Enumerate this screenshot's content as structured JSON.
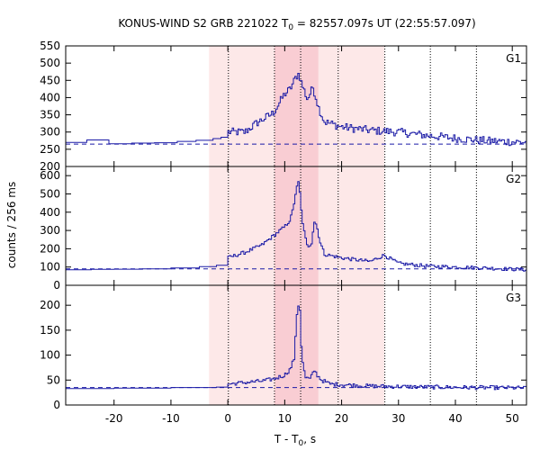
{
  "chart_data": {
    "type": "line",
    "title_pre": "KONUS-WIND S2 GRB 221022 T",
    "title_sub": "0",
    "title_post": " = 82557.097s UT (22:55:57.097)",
    "ylabel": "counts / 256 ms",
    "xlabel_pre": "T - T",
    "xlabel_sub": "0",
    "xlabel_post": ", s",
    "xlim": [
      -28.5,
      52.5
    ],
    "x_ticks": [
      -20,
      -10,
      0,
      10,
      20,
      30,
      40,
      50
    ],
    "x_tick_labels": [
      "-20",
      "-10",
      "0",
      "10",
      "20",
      "30",
      "40",
      "50"
    ],
    "grid": false,
    "colors": {
      "series": "#1a1aa6",
      "shade_light": "#fde8e8",
      "shade_dark": "#f9cdd3",
      "marker": "#000000"
    },
    "shaded_intervals": [
      {
        "from": -3.3,
        "to": 27.5,
        "tone": "light"
      },
      {
        "from": 8.2,
        "to": 15.9,
        "tone": "dark"
      }
    ],
    "marker_lines": [
      0.1,
      8.2,
      12.8,
      19.4,
      27.6,
      35.6,
      43.7
    ],
    "panels": [
      {
        "name": "G1",
        "ylim": [
          200,
          550
        ],
        "y_ticks": [
          200,
          250,
          300,
          350,
          400,
          450,
          500,
          550
        ],
        "y_tick_labels": [
          "200",
          "250",
          "300",
          "350",
          "400",
          "450",
          "500",
          "550"
        ],
        "background": 265,
        "pre_trigger": [
          [
            -28.5,
            270
          ],
          [
            -24.8,
            277
          ],
          [
            -20.9,
            266
          ],
          [
            -16.9,
            268
          ],
          [
            -12.9,
            269
          ],
          [
            -8.9,
            273
          ],
          [
            -5.6,
            276
          ],
          [
            -2.6,
            281
          ],
          [
            -1.2,
            285
          ],
          [
            0,
            285
          ]
        ],
        "profile": [
          [
            0,
            300
          ],
          [
            3,
            300
          ],
          [
            5,
            325
          ],
          [
            8,
            355
          ],
          [
            10,
            410
          ],
          [
            11,
            425
          ],
          [
            12,
            460
          ],
          [
            12.5,
            470
          ],
          [
            13,
            440
          ],
          [
            14,
            395
          ],
          [
            15,
            430
          ],
          [
            16,
            370
          ],
          [
            17,
            330
          ],
          [
            20,
            315
          ],
          [
            25,
            305
          ],
          [
            30,
            300
          ],
          [
            35,
            290
          ],
          [
            40,
            282
          ],
          [
            45,
            275
          ],
          [
            52.5,
            270
          ]
        ],
        "noise": 12
      },
      {
        "name": "G2",
        "ylim": [
          0,
          650
        ],
        "y_ticks": [
          0,
          100,
          200,
          300,
          400,
          500,
          600
        ],
        "y_tick_labels": [
          "0",
          "100",
          "200",
          "300",
          "400",
          "500",
          "600"
        ],
        "background": 90,
        "pre_trigger": [
          [
            -28.5,
            85
          ],
          [
            -24,
            87
          ],
          [
            -20,
            88
          ],
          [
            -15,
            90
          ],
          [
            -10,
            95
          ],
          [
            -5,
            102
          ],
          [
            -2,
            110
          ],
          [
            0,
            115
          ]
        ],
        "profile": [
          [
            0,
            150
          ],
          [
            3,
            180
          ],
          [
            6,
            220
          ],
          [
            8,
            270
          ],
          [
            10,
            320
          ],
          [
            11,
            360
          ],
          [
            11.5,
            420
          ],
          [
            12,
            520
          ],
          [
            12.5,
            570
          ],
          [
            13,
            380
          ],
          [
            13.5,
            280
          ],
          [
            14,
            210
          ],
          [
            14.7,
            230
          ],
          [
            15.2,
            350
          ],
          [
            15.6,
            330
          ],
          [
            16.2,
            240
          ],
          [
            17,
            170
          ],
          [
            20,
            150
          ],
          [
            25,
            130
          ],
          [
            27.5,
            165
          ],
          [
            30,
            120
          ],
          [
            35,
            105
          ],
          [
            40,
            100
          ],
          [
            45,
            95
          ],
          [
            52.5,
            85
          ]
        ],
        "noise": 10
      },
      {
        "name": "G3",
        "ylim": [
          0,
          240
        ],
        "y_ticks": [
          0,
          50,
          100,
          150,
          200
        ],
        "y_tick_labels": [
          "0",
          "50",
          "100",
          "150",
          "200"
        ],
        "background": 35,
        "pre_trigger": [
          [
            -28.5,
            33
          ],
          [
            -20,
            34
          ],
          [
            -10,
            35
          ],
          [
            -2,
            36
          ],
          [
            0,
            38
          ]
        ],
        "profile": [
          [
            0,
            42
          ],
          [
            3,
            45
          ],
          [
            6,
            48
          ],
          [
            8,
            52
          ],
          [
            10,
            60
          ],
          [
            11,
            72
          ],
          [
            11.7,
            95
          ],
          [
            12.2,
            190
          ],
          [
            12.6,
            210
          ],
          [
            13,
            100
          ],
          [
            13.6,
            55
          ],
          [
            14.5,
            52
          ],
          [
            15.2,
            70
          ],
          [
            15.7,
            60
          ],
          [
            16.5,
            50
          ],
          [
            18,
            42
          ],
          [
            25,
            38
          ],
          [
            35,
            36
          ],
          [
            45,
            35
          ],
          [
            52.5,
            34
          ]
        ],
        "noise": 4
      }
    ]
  }
}
